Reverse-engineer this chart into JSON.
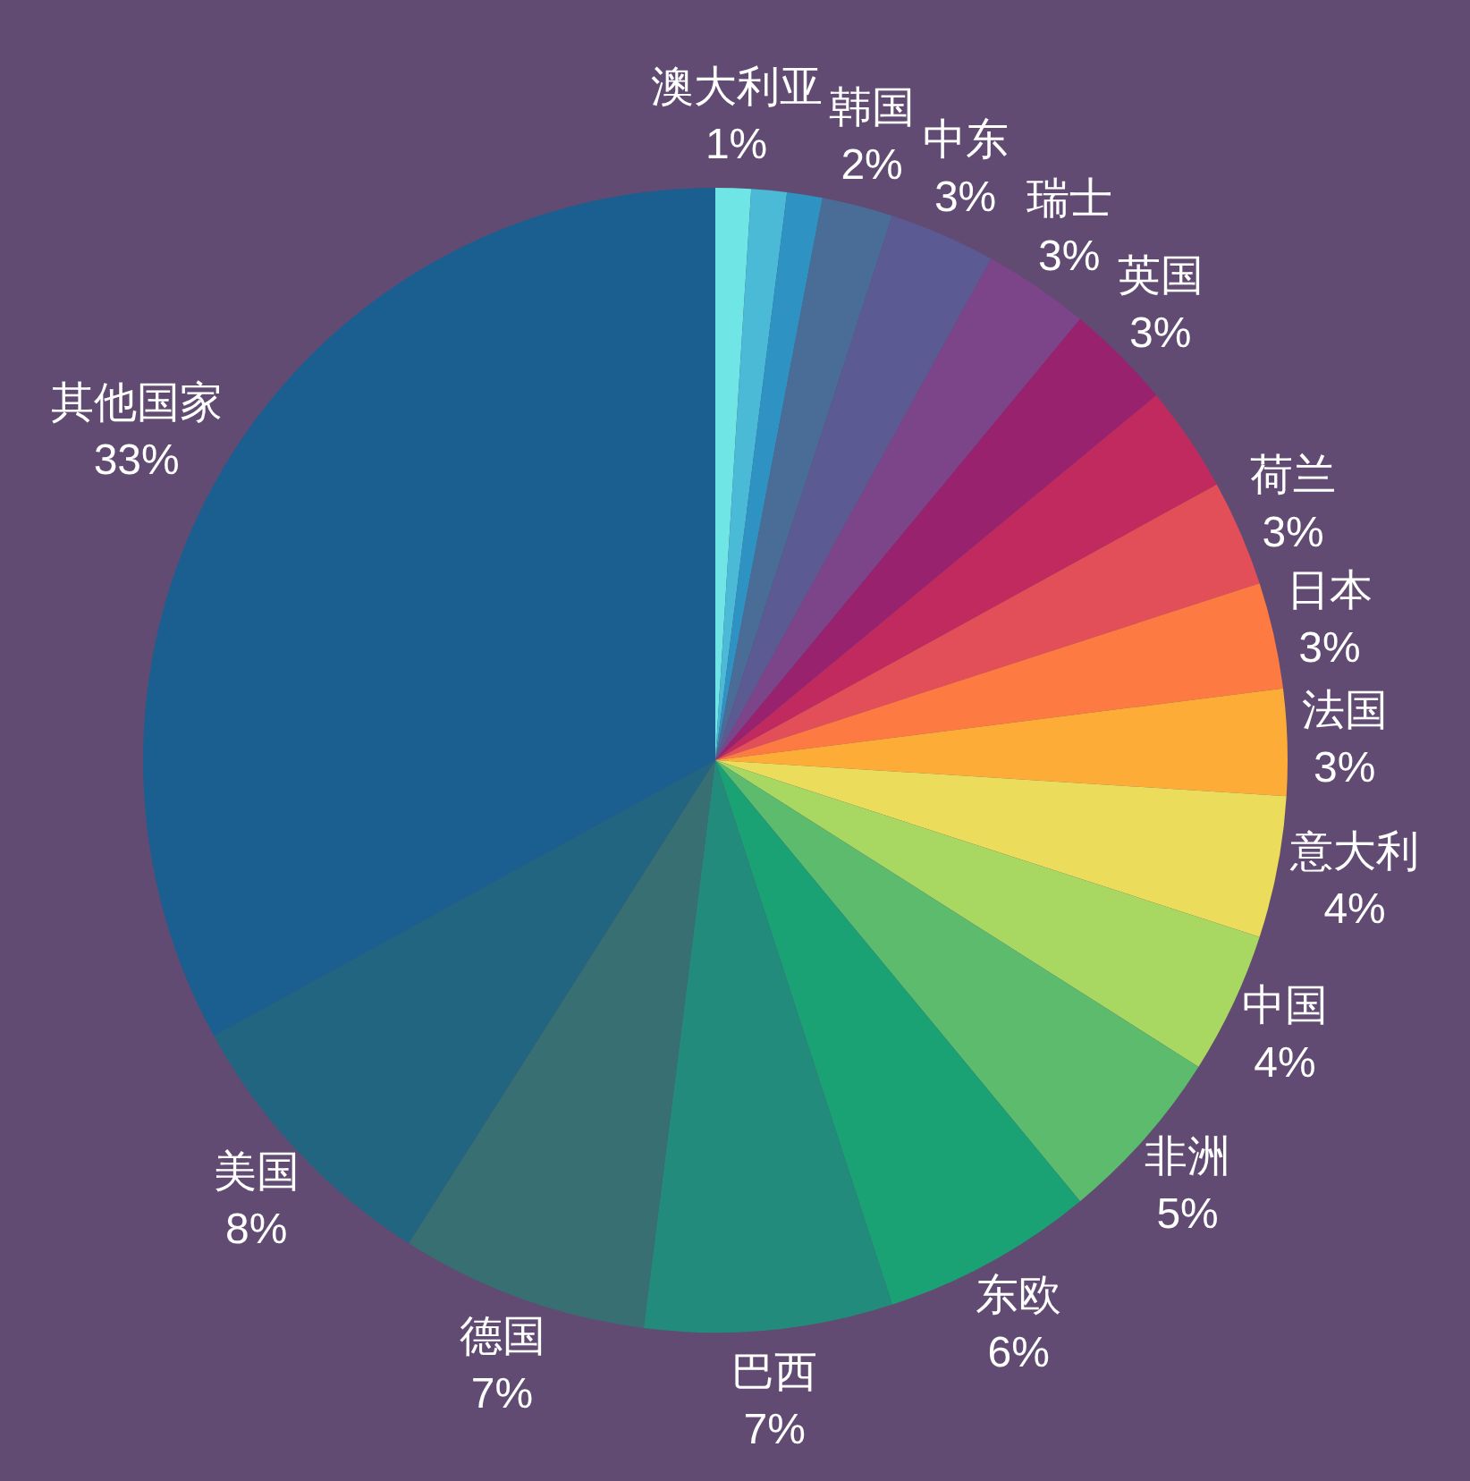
{
  "chart_data": {
    "type": "pie",
    "categories": [
      "澳大利亚",
      null,
      null,
      "韩国",
      "中东",
      "瑞士",
      "英国",
      null,
      "荷兰",
      "日本",
      "法国",
      "意大利",
      "中国",
      "非洲",
      "东欧",
      "巴西",
      "德国",
      "美国",
      "其他国家"
    ],
    "values": [
      1,
      1,
      1,
      2,
      3,
      3,
      3,
      3,
      3,
      3,
      3,
      4,
      4,
      5,
      6,
      7,
      7,
      8,
      33
    ],
    "value_labels": [
      "1%",
      null,
      null,
      "2%",
      "3%",
      "3%",
      "3%",
      null,
      "3%",
      "3%",
      "3%",
      "4%",
      "4%",
      "5%",
      "6%",
      "7%",
      "7%",
      "8%",
      "33%"
    ],
    "colors": [
      "#6fe5e6",
      "#4bbad6",
      "#2e92c2",
      "#4a6d98",
      "#5c5a92",
      "#7c4589",
      "#98226e",
      "#c12a5e",
      "#e24f58",
      "#fd7a42",
      "#fdad37",
      "#ecdc5c",
      "#a8d862",
      "#5cbb6c",
      "#1aa174",
      "#228b7b",
      "#386f73",
      "#226580",
      "#1b5f91"
    ]
  }
}
